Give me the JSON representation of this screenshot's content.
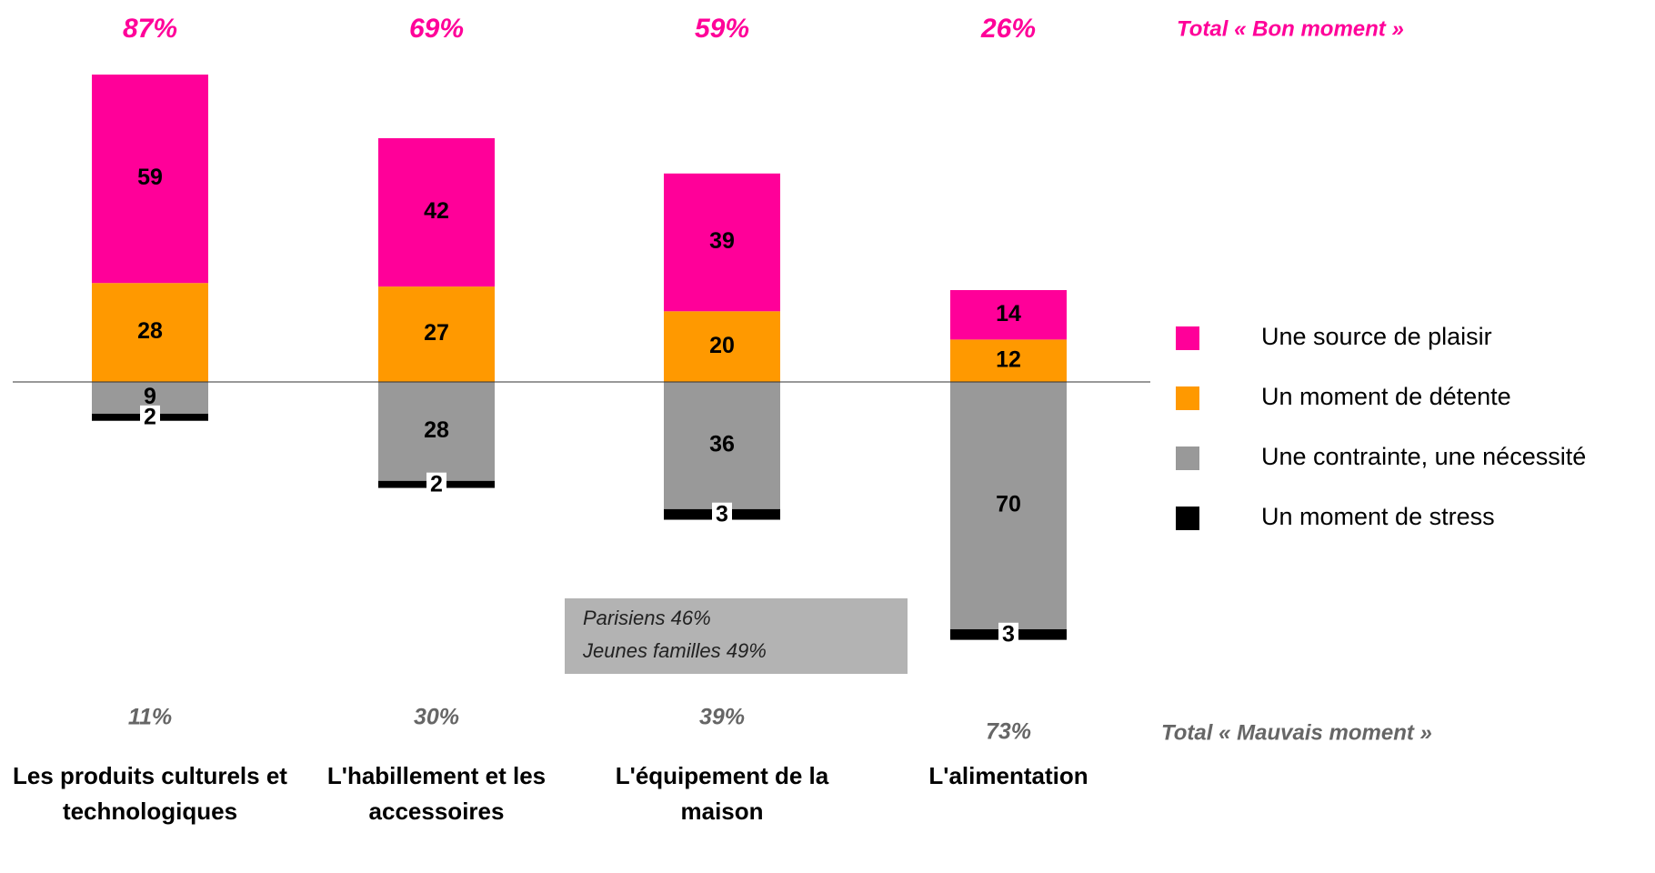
{
  "chart_data": {
    "type": "diverging_stacked_bar",
    "categories": [
      "Les produits culturels et technologiques",
      "L'habillement et les accessoires",
      "L'équipement de la maison",
      "L'alimentation"
    ],
    "series": [
      {
        "name": "Une source de plaisir",
        "color": "#ff0099",
        "side": "above",
        "values": [
          59,
          42,
          39,
          14
        ]
      },
      {
        "name": "Un moment de détente",
        "color": "#ff9900",
        "side": "above",
        "values": [
          28,
          27,
          20,
          12
        ]
      },
      {
        "name": "Une contrainte, une nécessité",
        "color": "#999999",
        "side": "below",
        "values": [
          9,
          28,
          36,
          70
        ]
      },
      {
        "name": "Un moment de stress",
        "color": "#000000",
        "side": "below",
        "values": [
          2,
          2,
          3,
          3
        ]
      }
    ],
    "totals_above": {
      "title": "Total « Bon moment »",
      "color": "#ff0099",
      "values": [
        87,
        69,
        59,
        26
      ],
      "value_labels": [
        "87%",
        "69%",
        "59%",
        "26%"
      ]
    },
    "totals_below": {
      "title": "Total « Mauvais moment »",
      "color": "#666666",
      "values": [
        11,
        30,
        39,
        73
      ],
      "value_labels": [
        "11%",
        "30%",
        "39%",
        "73%"
      ]
    },
    "annotation": [
      "Parisiens 46%",
      "Jeunes familles 49%"
    ]
  }
}
